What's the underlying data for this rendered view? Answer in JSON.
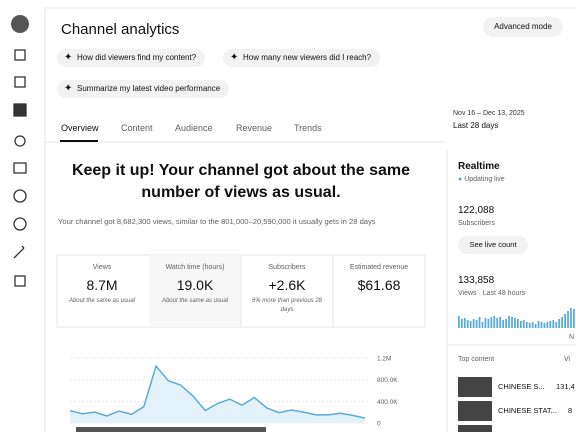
{
  "header": {
    "title": "Channel analytics",
    "button": "Advanced mode"
  },
  "chips": [
    "How did viewers find my content?",
    "How many new viewers did I reach?",
    "Summarize my latest video performance"
  ],
  "date": {
    "range": "Nov 16 – Dec 13, 2025",
    "label": "Last 28 days"
  },
  "tabs": [
    "Overview",
    "Content",
    "Audience",
    "Revenue",
    "Trends"
  ],
  "headline": "Keep it up! Your channel got about the same number of views as usual.",
  "summary": "Your channel got 8,682,300 views, similar to the 801,000–20,590,000 it usually gets in 28 days",
  "metrics": [
    {
      "label": "Views",
      "value": "8.7M",
      "note": "About the same as usual"
    },
    {
      "label": "Watch time (hours)",
      "value": "19.0K",
      "note": "About the same as usual"
    },
    {
      "label": "Subscribers",
      "value": "+2.6K",
      "note": "6% more than previous 28 days"
    },
    {
      "label": "Estimated revenue",
      "value": "$61.68"
    }
  ],
  "chart_data": {
    "type": "line",
    "ylim": [
      0,
      1200000
    ],
    "yticks": [
      0,
      {
        "value": 400000,
        "label": "400.0K"
      },
      {
        "value": 800000,
        "label": "800.0K"
      },
      {
        "value": 1200000,
        "label": "1.2M"
      }
    ],
    "values": [
      230000,
      170000,
      200000,
      130000,
      220000,
      160000,
      300000,
      1050000,
      780000,
      700000,
      500000,
      230000,
      360000,
      440000,
      330000,
      470000,
      280000,
      190000,
      240000,
      200000,
      150000,
      150000,
      180000,
      140000,
      90000
    ]
  },
  "realtime": {
    "title": "Realtime",
    "status": "Updating live",
    "subscribers": "122,088",
    "subscribers_label": "Subscribers",
    "button": "See live count",
    "views": "133,858",
    "views_label": "Views · Last 48 hours",
    "axis_label": "N",
    "bars": [
      60,
      45,
      50,
      40,
      35,
      45,
      40,
      55,
      30,
      50,
      45,
      55,
      60,
      50,
      55,
      40,
      45,
      60,
      55,
      50,
      45,
      35,
      40,
      30,
      25,
      30,
      20,
      35,
      30,
      25,
      30,
      35,
      40,
      30,
      45,
      55,
      70,
      85,
      100,
      95
    ]
  },
  "top_content": {
    "title": "Top content",
    "column": "Vi",
    "rows": [
      [
        "CHINESE S...",
        "131,4"
      ],
      [
        "CHINESE STAT...",
        "8"
      ]
    ]
  }
}
